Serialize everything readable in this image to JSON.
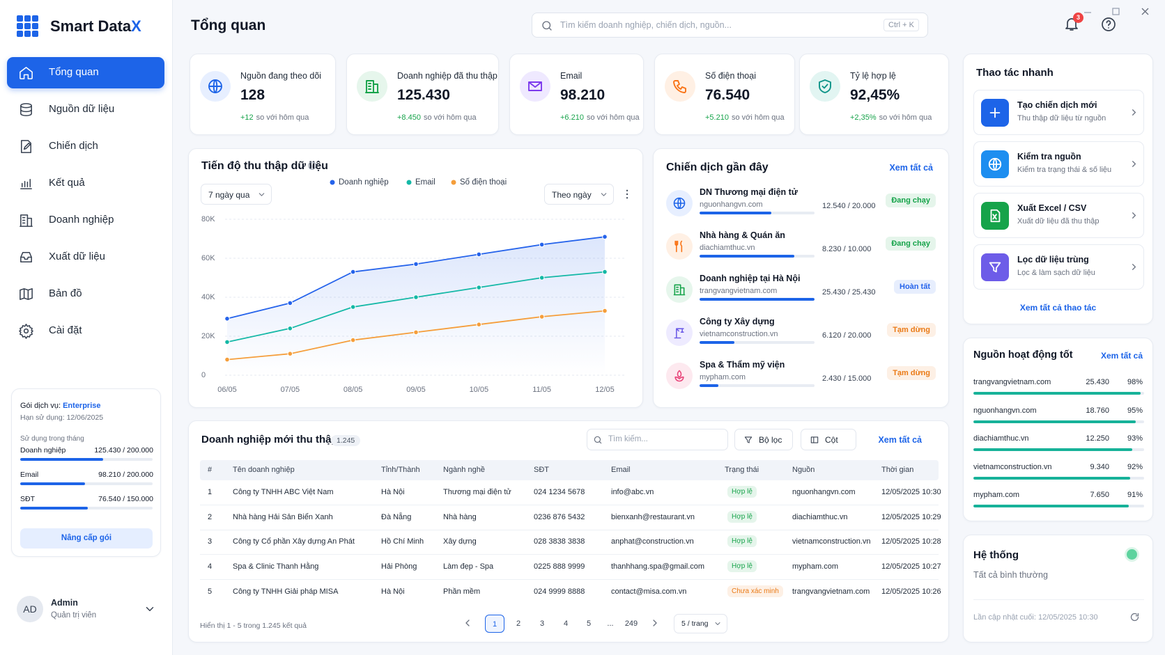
{
  "brand": {
    "name": "Smart Data",
    "accent": "X"
  },
  "sidebar": {
    "nav": [
      "Tổng quan",
      "Nguồn dữ liệu",
      "Chiến dịch",
      "Kết quả",
      "Doanh nghiệp",
      "Xuất dữ liệu",
      "Bản đồ",
      "Cài đặt"
    ],
    "plan": {
      "label": "Gói dịch vụ:",
      "name": "Enterprise",
      "expiry": "Hạn sử dụng: 12/06/2025",
      "usage_title": "Sử dụng trong tháng",
      "usage": [
        {
          "label": "Doanh nghiệp",
          "value": "125.430 / 200.000"
        },
        {
          "label": "Email",
          "value": "98.210 / 200.000"
        },
        {
          "label": "SĐT",
          "value": "76.540 / 150.000"
        }
      ],
      "button": "Nâng cấp gói"
    },
    "user": {
      "initials": "AD",
      "name": "Admin",
      "role": "Quản trị viên"
    }
  },
  "header": {
    "title": "Tổng quan",
    "search_placeholder": "Tìm kiếm doanh nghiệp, chiến dịch, nguồn...",
    "shortcut": "Ctrl + K",
    "notifications": "3"
  },
  "stats": [
    {
      "label": "Nguồn đang theo dõi",
      "value": "128",
      "delta": "+12",
      "note": "so với hôm qua"
    },
    {
      "label": "Doanh nghiệp đã thu thập",
      "value": "125.430",
      "delta": "+8.450",
      "note": "so với hôm qua"
    },
    {
      "label": "Email",
      "value": "98.210",
      "delta": "+6.210",
      "note": "so với hôm qua"
    },
    {
      "label": "Số điện thoại",
      "value": "76.540",
      "delta": "+5.210",
      "note": "so với hôm qua"
    },
    {
      "label": "Tỷ lệ hợp lệ",
      "value": "92,45%",
      "delta": "+2,35%",
      "note": "so với hôm qua"
    }
  ],
  "chart_data": {
    "type": "line",
    "title": "Tiến độ thu thập dữ liệu",
    "range": "7 ngày qua",
    "granularity": "Theo ngày",
    "categories": [
      "06/05",
      "07/05",
      "08/05",
      "09/05",
      "10/05",
      "11/05",
      "12/05"
    ],
    "series": [
      {
        "name": "Doanh nghiệp",
        "color": "#2563eb",
        "values": [
          29000,
          37000,
          53000,
          57000,
          62000,
          67000,
          71000
        ]
      },
      {
        "name": "Email",
        "color": "#14b8a6",
        "values": [
          17000,
          24000,
          35000,
          40000,
          45000,
          50000,
          53000
        ]
      },
      {
        "name": "Số điện thoại",
        "color": "#f59e3b",
        "values": [
          8000,
          11000,
          18000,
          22000,
          26000,
          30000,
          33000
        ]
      }
    ],
    "ylim": [
      0,
      80000
    ],
    "yticks": [
      0,
      {
        "value": 20000,
        "label": "20K"
      },
      {
        "value": 40000,
        "label": "40K"
      },
      {
        "value": 60000,
        "label": "60K"
      },
      {
        "value": 80000,
        "label": "80K"
      }
    ],
    "grid": true,
    "legend": "top"
  },
  "campaigns": {
    "title": "Chiến dịch gần đây",
    "link": "Xem tất cả",
    "items": [
      {
        "name": "DN Thương mại điện tử",
        "domain": "nguonhangvn.com",
        "progress": "12.540 / 20.000",
        "status": "Đang chạy",
        "color": "#16a34a"
      },
      {
        "name": "Nhà hàng & Quán ăn",
        "domain": "diachiamthuc.vn",
        "progress": "8.230 / 10.000",
        "status": "Đang chạy",
        "color": "#16a34a"
      },
      {
        "name": "Doanh nghiệp tại Hà Nội",
        "domain": "trangvangvietnam.com",
        "progress": "25.430 / 25.430",
        "status": "Hoàn tất",
        "color": "#2563eb"
      },
      {
        "name": "Công ty Xây dựng",
        "domain": "vietnamconstruction.vn",
        "progress": "6.120 / 20.000",
        "status": "Tạm dừng",
        "color": "#ea7a16"
      },
      {
        "name": "Spa & Thẩm mỹ viện",
        "domain": "mypham.com",
        "progress": "2.430 / 15.000",
        "status": "Tạm dừng",
        "color": "#ea7a16"
      }
    ]
  },
  "table": {
    "title": "Doanh nghiệp mới thu thập",
    "count": "1.245",
    "search_placeholder": "Tìm kiếm...",
    "filter": "Bộ lọc",
    "columns_button": "Cột",
    "link": "Xem tất cả",
    "headers": [
      "#",
      "Tên doanh nghiệp",
      "Tỉnh/Thành",
      "Ngành nghề",
      "SĐT",
      "Email",
      "Trạng thái",
      "Nguồn",
      "Thời gian"
    ],
    "rows": [
      [
        "1",
        "Công ty TNHH ABC Việt Nam",
        "Hà Nội",
        "Thương mại điện tử",
        "024 1234 5678",
        "info@abc.vn",
        "Hợp lệ",
        "nguonhangvn.com",
        "12/05/2025 10:30"
      ],
      [
        "2",
        "Nhà hàng Hải Sản Biển Xanh",
        "Đà Nẵng",
        "Nhà hàng",
        "0236 876 5432",
        "bienxanh@restaurant.vn",
        "Hợp lệ",
        "diachiamthuc.vn",
        "12/05/2025 10:29"
      ],
      [
        "3",
        "Công ty Cổ phần Xây dựng An Phát",
        "Hồ Chí Minh",
        "Xây dựng",
        "028 3838 3838",
        "anphat@construction.vn",
        "Hợp lệ",
        "vietnamconstruction.vn",
        "12/05/2025 10:28"
      ],
      [
        "4",
        "Spa & Clinic Thanh Hằng",
        "Hải Phòng",
        "Làm đẹp - Spa",
        "0225 888 9999",
        "thanhhang.spa@gmail.com",
        "Hợp lệ",
        "mypham.com",
        "12/05/2025 10:27"
      ],
      [
        "5",
        "Công ty TNHH Giải pháp MISA",
        "Hà Nội",
        "Phần mềm",
        "024 9999 8888",
        "contact@misa.com.vn",
        "Chưa xác minh",
        "trangvangvietnam.com",
        "12/05/2025 10:26"
      ]
    ],
    "status_colors": [
      "#16a34a",
      "#16a34a",
      "#16a34a",
      "#16a34a",
      "#ea7a16"
    ],
    "footer": "Hiển thị 1 - 5 trong 1.245 kết quả",
    "pages": [
      "1",
      "2",
      "3",
      "4",
      "5",
      "...",
      "249"
    ],
    "page_size": "5 / trang"
  },
  "quick_actions": {
    "title": "Thao tác nhanh",
    "items": [
      {
        "title": "Tạo chiến dịch mới",
        "desc": "Thu thập dữ liệu từ nguồn"
      },
      {
        "title": "Kiểm tra nguồn",
        "desc": "Kiểm tra trạng thái & số liệu"
      },
      {
        "title": "Xuất Excel / CSV",
        "desc": "Xuất dữ liệu đã thu thập"
      },
      {
        "title": "Lọc dữ liệu trùng",
        "desc": "Lọc & làm sạch dữ liệu"
      }
    ],
    "link": "Xem tất cả thao tác"
  },
  "sources": {
    "title": "Nguồn hoạt động tốt",
    "link": "Xem tất cả",
    "items": [
      {
        "domain": "trangvangvietnam.com",
        "count": "25.430",
        "rate": "98%"
      },
      {
        "domain": "nguonhangvn.com",
        "count": "18.760",
        "rate": "95%"
      },
      {
        "domain": "diachiamthuc.vn",
        "count": "12.250",
        "rate": "93%"
      },
      {
        "domain": "vietnamconstruction.vn",
        "count": "9.340",
        "rate": "92%"
      },
      {
        "domain": "mypham.com",
        "count": "7.650",
        "rate": "91%"
      }
    ]
  },
  "system": {
    "title": "Hệ thống",
    "status": "Tất cả bình thường",
    "updated": "Lần cập nhật cuối: 12/05/2025 10:30"
  }
}
